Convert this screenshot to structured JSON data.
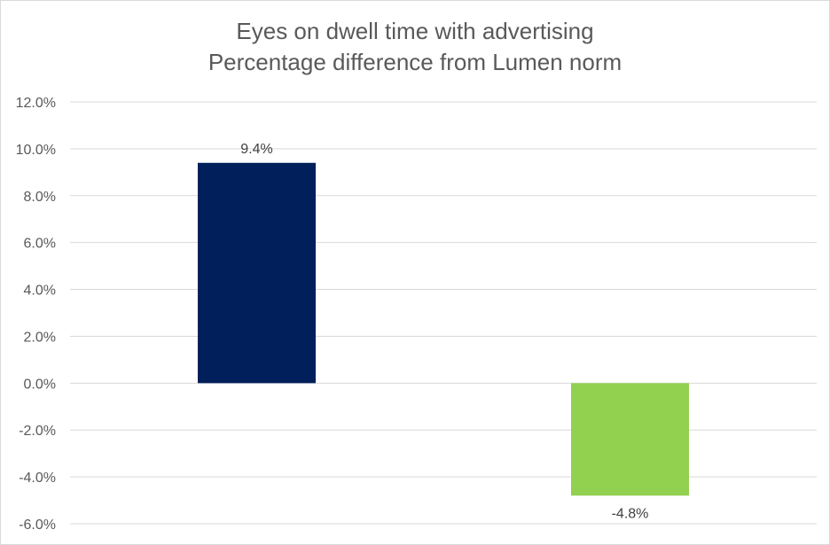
{
  "chart_data": {
    "type": "bar",
    "title": "Eyes on dwell time with advertising",
    "subtitle": "Percentage difference from Lumen norm",
    "categories": [
      "",
      ""
    ],
    "values": [
      9.4,
      -4.8
    ],
    "data_labels": [
      "9.4%",
      "-4.8%"
    ],
    "bar_colors": [
      "#001f5b",
      "#92d050"
    ],
    "ylim": [
      -6,
      12
    ],
    "yticks": [
      12,
      10,
      8,
      6,
      4,
      2,
      0,
      -2,
      -4,
      -6
    ],
    "ytick_labels": [
      "12.0%",
      "10.0%",
      "8.0%",
      "6.0%",
      "4.0%",
      "2.0%",
      "0.0%",
      "-2.0%",
      "-4.0%",
      "-6.0%"
    ],
    "xlabel": "",
    "ylabel": "",
    "grid": true,
    "legend": "none"
  }
}
